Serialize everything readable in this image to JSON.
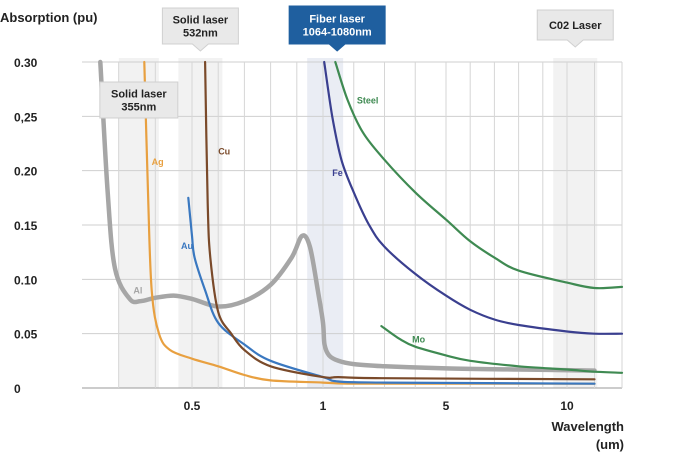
{
  "chart_data": {
    "type": "line",
    "title": "",
    "ylabel": "Absorption (pu)",
    "xlabel": "Wavelength (um)",
    "xlabel_lines": [
      "Wavelength",
      "(um)"
    ],
    "ylim": [
      0,
      0.3
    ],
    "yticks": [
      {
        "value": 0.3,
        "label": "0.30"
      },
      {
        "value": 0.25,
        "label": "0,25"
      },
      {
        "value": 0.2,
        "label": "0.20"
      },
      {
        "value": 0.15,
        "label": "0.15"
      },
      {
        "value": 0.1,
        "label": "0.10"
      },
      {
        "value": 0.05,
        "label": "0.05"
      },
      {
        "value": 0.0,
        "label": "0"
      }
    ],
    "xticks": [
      {
        "value": 0.5,
        "label": "0.5"
      },
      {
        "value": 1,
        "label": "1"
      },
      {
        "value": 5,
        "label": "5"
      },
      {
        "value": 10,
        "label": "10"
      }
    ],
    "x_scale_note": "non-uniform wavelength axis",
    "grid": true,
    "bands": [
      {
        "label_lines": [
          "Solid laser",
          "532nm"
        ],
        "x": 0.532,
        "style": "light"
      },
      {
        "label_lines": [
          "Solid laser",
          "355nm"
        ],
        "x": 0.355,
        "style": "light"
      },
      {
        "label_lines": [
          "Fiber laser",
          "1064-1080nm"
        ],
        "x": 1.07,
        "style": "dark"
      },
      {
        "label_lines": [
          "C02 Laser"
        ],
        "x": 10.6,
        "style": "light"
      }
    ],
    "series": [
      {
        "name": "Al",
        "color": "#a6a6a6",
        "x": [
          0.25,
          0.27,
          0.29,
          0.33,
          0.36,
          0.4,
          0.45,
          0.5,
          0.6,
          0.7,
          0.8,
          0.88,
          0.92,
          0.95,
          0.98,
          1.0,
          1.05,
          1.2,
          1.5,
          2,
          3,
          5,
          8,
          12
        ],
        "y": [
          0.3,
          0.18,
          0.11,
          0.082,
          0.08,
          0.083,
          0.085,
          0.082,
          0.075,
          0.08,
          0.095,
          0.12,
          0.14,
          0.13,
          0.09,
          0.06,
          0.04,
          0.03,
          0.025,
          0.022,
          0.02,
          0.018,
          0.017,
          0.016
        ]
      },
      {
        "name": "Ag",
        "color": "#e8a040",
        "x": [
          0.37,
          0.38,
          0.39,
          0.41,
          0.44,
          0.5,
          0.6,
          0.7,
          0.8,
          1.0,
          2,
          5,
          12
        ],
        "y": [
          0.3,
          0.18,
          0.09,
          0.05,
          0.035,
          0.027,
          0.02,
          0.012,
          0.007,
          0.005,
          0.004,
          0.004,
          0.004
        ]
      },
      {
        "name": "Au",
        "color": "#3a78c0",
        "x": [
          0.49,
          0.5,
          0.51,
          0.55,
          0.6,
          0.7,
          0.8,
          1.0,
          1.5,
          3,
          12
        ],
        "y": [
          0.175,
          0.14,
          0.12,
          0.09,
          0.06,
          0.04,
          0.025,
          0.01,
          0.006,
          0.005,
          0.004
        ]
      },
      {
        "name": "Cu",
        "color": "#7a4a2a",
        "x": [
          0.55,
          0.56,
          0.57,
          0.6,
          0.65,
          0.7,
          0.8,
          1.0,
          1.5,
          3,
          12
        ],
        "y": [
          0.3,
          0.17,
          0.12,
          0.07,
          0.05,
          0.035,
          0.02,
          0.01,
          0.01,
          0.009,
          0.008
        ]
      },
      {
        "name": "Fe",
        "color": "#3a3f8f",
        "x": [
          1.04,
          1.3,
          1.6,
          2,
          2.5,
          3,
          4,
          5,
          6,
          7,
          8,
          10,
          12,
          14
        ],
        "y": [
          0.3,
          0.25,
          0.21,
          0.18,
          0.15,
          0.13,
          0.105,
          0.085,
          0.072,
          0.063,
          0.058,
          0.052,
          0.05,
          0.05
        ]
      },
      {
        "name": "Steel",
        "color": "#3f8a52",
        "x": [
          1.4,
          1.8,
          2.3,
          3,
          4,
          5,
          6,
          7,
          8,
          10,
          12,
          14
        ],
        "y": [
          0.3,
          0.265,
          0.235,
          0.21,
          0.18,
          0.155,
          0.135,
          0.12,
          0.108,
          0.097,
          0.092,
          0.093
        ]
      },
      {
        "name": "Mo",
        "color": "#3f8a52",
        "x": [
          2.9,
          3.5,
          4,
          5,
          6,
          8,
          10,
          12,
          14
        ],
        "y": [
          0.057,
          0.045,
          0.038,
          0.03,
          0.025,
          0.02,
          0.017,
          0.015,
          0.014
        ]
      }
    ]
  }
}
